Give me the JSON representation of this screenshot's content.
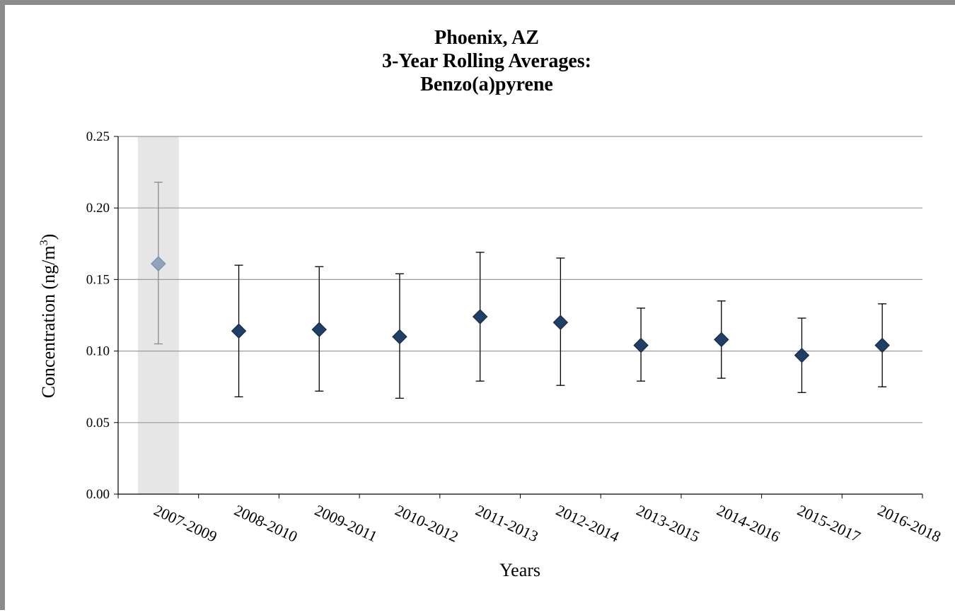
{
  "chart_data": {
    "type": "scatter",
    "title": [
      "Phoenix, AZ",
      "3-Year Rolling Averages:",
      "Benzo(a)pyrene"
    ],
    "xlabel": "Years",
    "ylabel_main": "Concentration (ng/m",
    "ylabel_sup": "3",
    "ylabel_end": ")",
    "categories": [
      "2007-2009",
      "2008-2010",
      "2009-2011",
      "2010-2012",
      "2011-2013",
      "2012-2014",
      "2013-2015",
      "2014-2016",
      "2015-2017",
      "2016-2018"
    ],
    "ylim": [
      0,
      0.25
    ],
    "yticks": [
      "0.00",
      "0.05",
      "0.10",
      "0.15",
      "0.20",
      "0.25"
    ],
    "grid": true,
    "shaded_categories": [
      0
    ],
    "series": [
      {
        "values": [
          0.161,
          0.114,
          0.115,
          0.11,
          0.124,
          0.12,
          0.104,
          0.108,
          0.097,
          0.104
        ],
        "error_low": [
          0.105,
          0.068,
          0.072,
          0.067,
          0.079,
          0.076,
          0.079,
          0.081,
          0.071,
          0.075
        ],
        "error_high": [
          0.218,
          0.16,
          0.159,
          0.154,
          0.169,
          0.165,
          0.13,
          0.135,
          0.123,
          0.133
        ]
      }
    ],
    "colors": {
      "marker": "#1f3f66",
      "marker_shaded": "#8fa3bd",
      "errorbar": "#000000",
      "errorbar_shaded": "#8a8a8a",
      "shade": "#e6e6e6",
      "grid": "#9a9a9a"
    }
  }
}
